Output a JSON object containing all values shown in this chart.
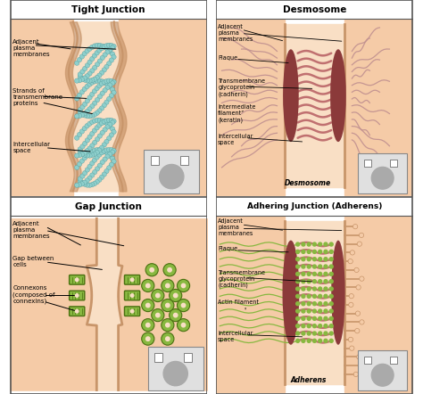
{
  "bg_color": "#ffffff",
  "border_color": "#555555",
  "titles": [
    "Tight Junction",
    "Desmosome",
    "Gap Junction",
    "Adhering Junction (Adherens)"
  ],
  "labels": {
    "tj": [
      "Adjacent\nplasma\nmembranes",
      "Strands of\ntransmembrane\nproteins",
      "Intercellular\nspace"
    ],
    "ds": [
      "Adjacent\nplasma\nmembranes",
      "Plaque",
      "Transmembrane\nglycoprotein\n(cadherin)",
      "Intermediate\nfilament\n(keratin)",
      "Intercellular\nspace",
      "Desmosome"
    ],
    "gj": [
      "Adjacent\nplasma\nmembranes",
      "Gap between\ncells",
      "Connexons\n(composed of\nconnexins)"
    ],
    "aj": [
      "Adjacent\nplasma\nmembranes",
      "Plaque",
      "Transmembrane\nglycoprotein\n(cadherin)",
      "Actin filament",
      "Intercellular\nspace",
      "Adherens"
    ]
  },
  "cell_color": "#f5cba7",
  "cell_inner": "#f9dfc5",
  "membrane_color": "#c8956a",
  "membrane_dark": "#b07050",
  "tight_bead_color": "#8ecfcc",
  "tight_bead_edge": "#5aa0a0",
  "desmosome_plaque": "#8b3a3a",
  "desmosome_cadherin": "#c07070",
  "desmosome_filament": "#c09090",
  "gap_green": "#88b840",
  "gap_green_dark": "#4a7010",
  "gap_green_light": "#b0d860",
  "actin_green": "#88b840",
  "actin_green_dark": "#4a7010",
  "inset_bg": "#e0e0e0",
  "inset_border": "#888888",
  "label_fontsize": 5.0,
  "title_fontsize": 7.5
}
